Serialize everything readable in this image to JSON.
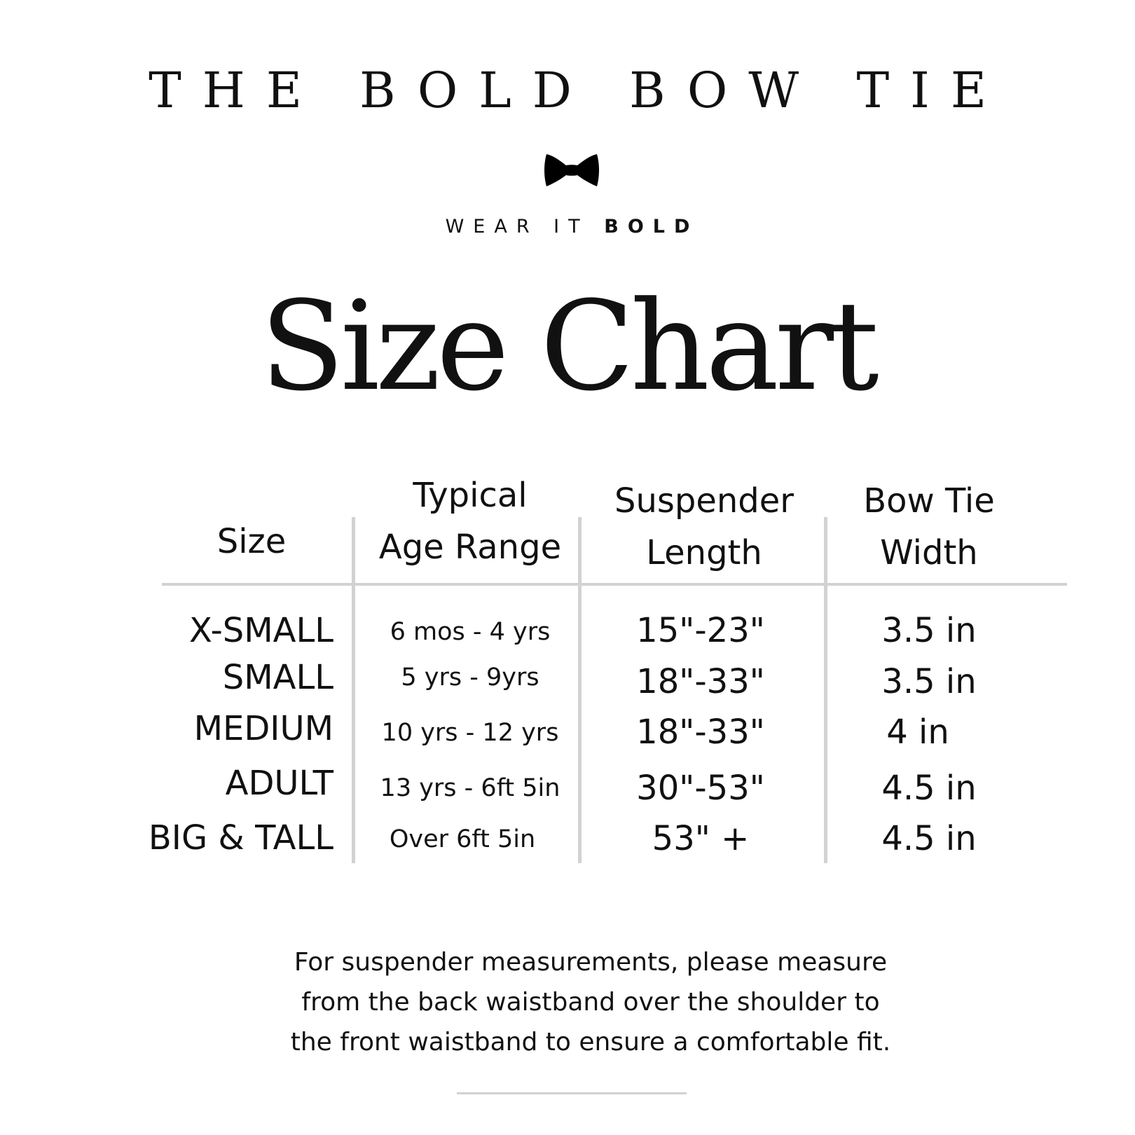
{
  "brand": {
    "name": "THE BOLD BOW TIE",
    "logo_icon": "bow-tie-icon",
    "tagline_light": "WEAR IT",
    "tagline_bold": "BOLD"
  },
  "title": "Size Chart",
  "table": {
    "headers": [
      {
        "line1": "",
        "line2": "Size"
      },
      {
        "line1": "Typical",
        "line2": "Age Range"
      },
      {
        "line1": "Suspender",
        "line2": "Length"
      },
      {
        "line1": "Bow Tie",
        "line2": "Width"
      }
    ],
    "rows": [
      {
        "size": "X-SMALL",
        "age": "6 mos - 4 yrs",
        "suspender": "15\"-23\"",
        "bowtie": "3.5 in"
      },
      {
        "size": "SMALL",
        "age": "5 yrs - 9yrs",
        "suspender": "18\"-33\"",
        "bowtie": "3.5 in"
      },
      {
        "size": "MEDIUM",
        "age": "10 yrs - 12 yrs",
        "suspender": "18\"-33\"",
        "bowtie": "4 in"
      },
      {
        "size": "ADULT",
        "age": "13 yrs - 6ft 5in",
        "suspender": "30\"-53\"",
        "bowtie": "4.5 in"
      },
      {
        "size": "BIG & TALL",
        "age": "Over 6ft 5in",
        "suspender": "53\" +",
        "bowtie": "4.5 in"
      }
    ]
  },
  "note": [
    "For suspender measurements, please measure",
    "from the back waistband over the shoulder to",
    "the front waistband to ensure a comfortable fit."
  ],
  "colors": {
    "text": "#111111",
    "rule": "#d3d1d2",
    "background": "#ffffff"
  }
}
